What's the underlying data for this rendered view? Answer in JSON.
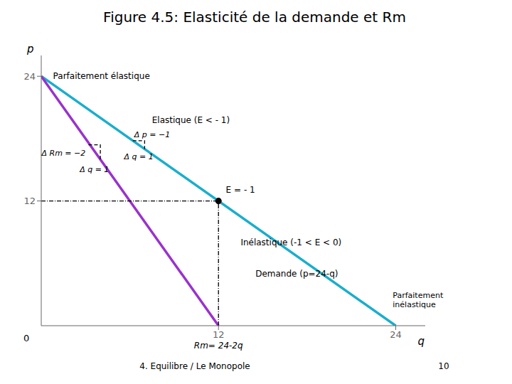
{
  "chart_data": {
    "type": "line",
    "title": "Figure 4.5: Elasticité de la demande et Rm",
    "x_label": "q",
    "y_label": "p",
    "xlim": [
      0,
      26
    ],
    "ylim": [
      0,
      26
    ],
    "xticks": [
      12,
      24
    ],
    "yticks": [
      12,
      24
    ],
    "grid": false,
    "series": [
      {
        "type": "line",
        "color": "#1AAECC",
        "line_style": "solid",
        "x": [
          0,
          24
        ],
        "values": [
          24,
          0
        ]
      },
      {
        "type": "line",
        "color": "#9932CC",
        "line_style": "solid",
        "x": [
          0,
          12
        ],
        "values": [
          24,
          0
        ]
      },
      {
        "type": "line",
        "color": "#000000",
        "line_style": "dashdot",
        "x": [
          0,
          12
        ],
        "values": [
          12,
          12
        ]
      },
      {
        "type": "line",
        "color": "#000000",
        "line_style": "dashdot",
        "x": [
          12,
          12
        ],
        "values": [
          0,
          12
        ]
      },
      {
        "type": "line",
        "color": "#000000",
        "line_style": "dashed",
        "x": [
          3.2,
          4.0,
          4.0
        ],
        "values": [
          17.4,
          17.4,
          15.8
        ]
      },
      {
        "type": "line",
        "color": "#000000",
        "line_style": "dashed",
        "x": [
          6.2,
          7.0,
          7.0
        ],
        "values": [
          17.8,
          17.8,
          17.0
        ]
      },
      {
        "type": "scatter",
        "color": "#000000",
        "marker": "o",
        "x": [
          12
        ],
        "values": [
          12
        ]
      }
    ],
    "annotations": [
      "Parfaitement élastique",
      "Elastique (E < - 1)",
      "E = - 1",
      "Inélastique (-1 < E < 0)",
      "Demande (p=24-q)",
      "Parfaitement\ninélastique",
      "Rm= 24-2q",
      "Δ Rm = −2",
      "Δ q = 1",
      "Δ p = −1",
      "Δ q = 1",
      "0",
      "4. Equilibre / Le Monopole",
      "10"
    ]
  }
}
